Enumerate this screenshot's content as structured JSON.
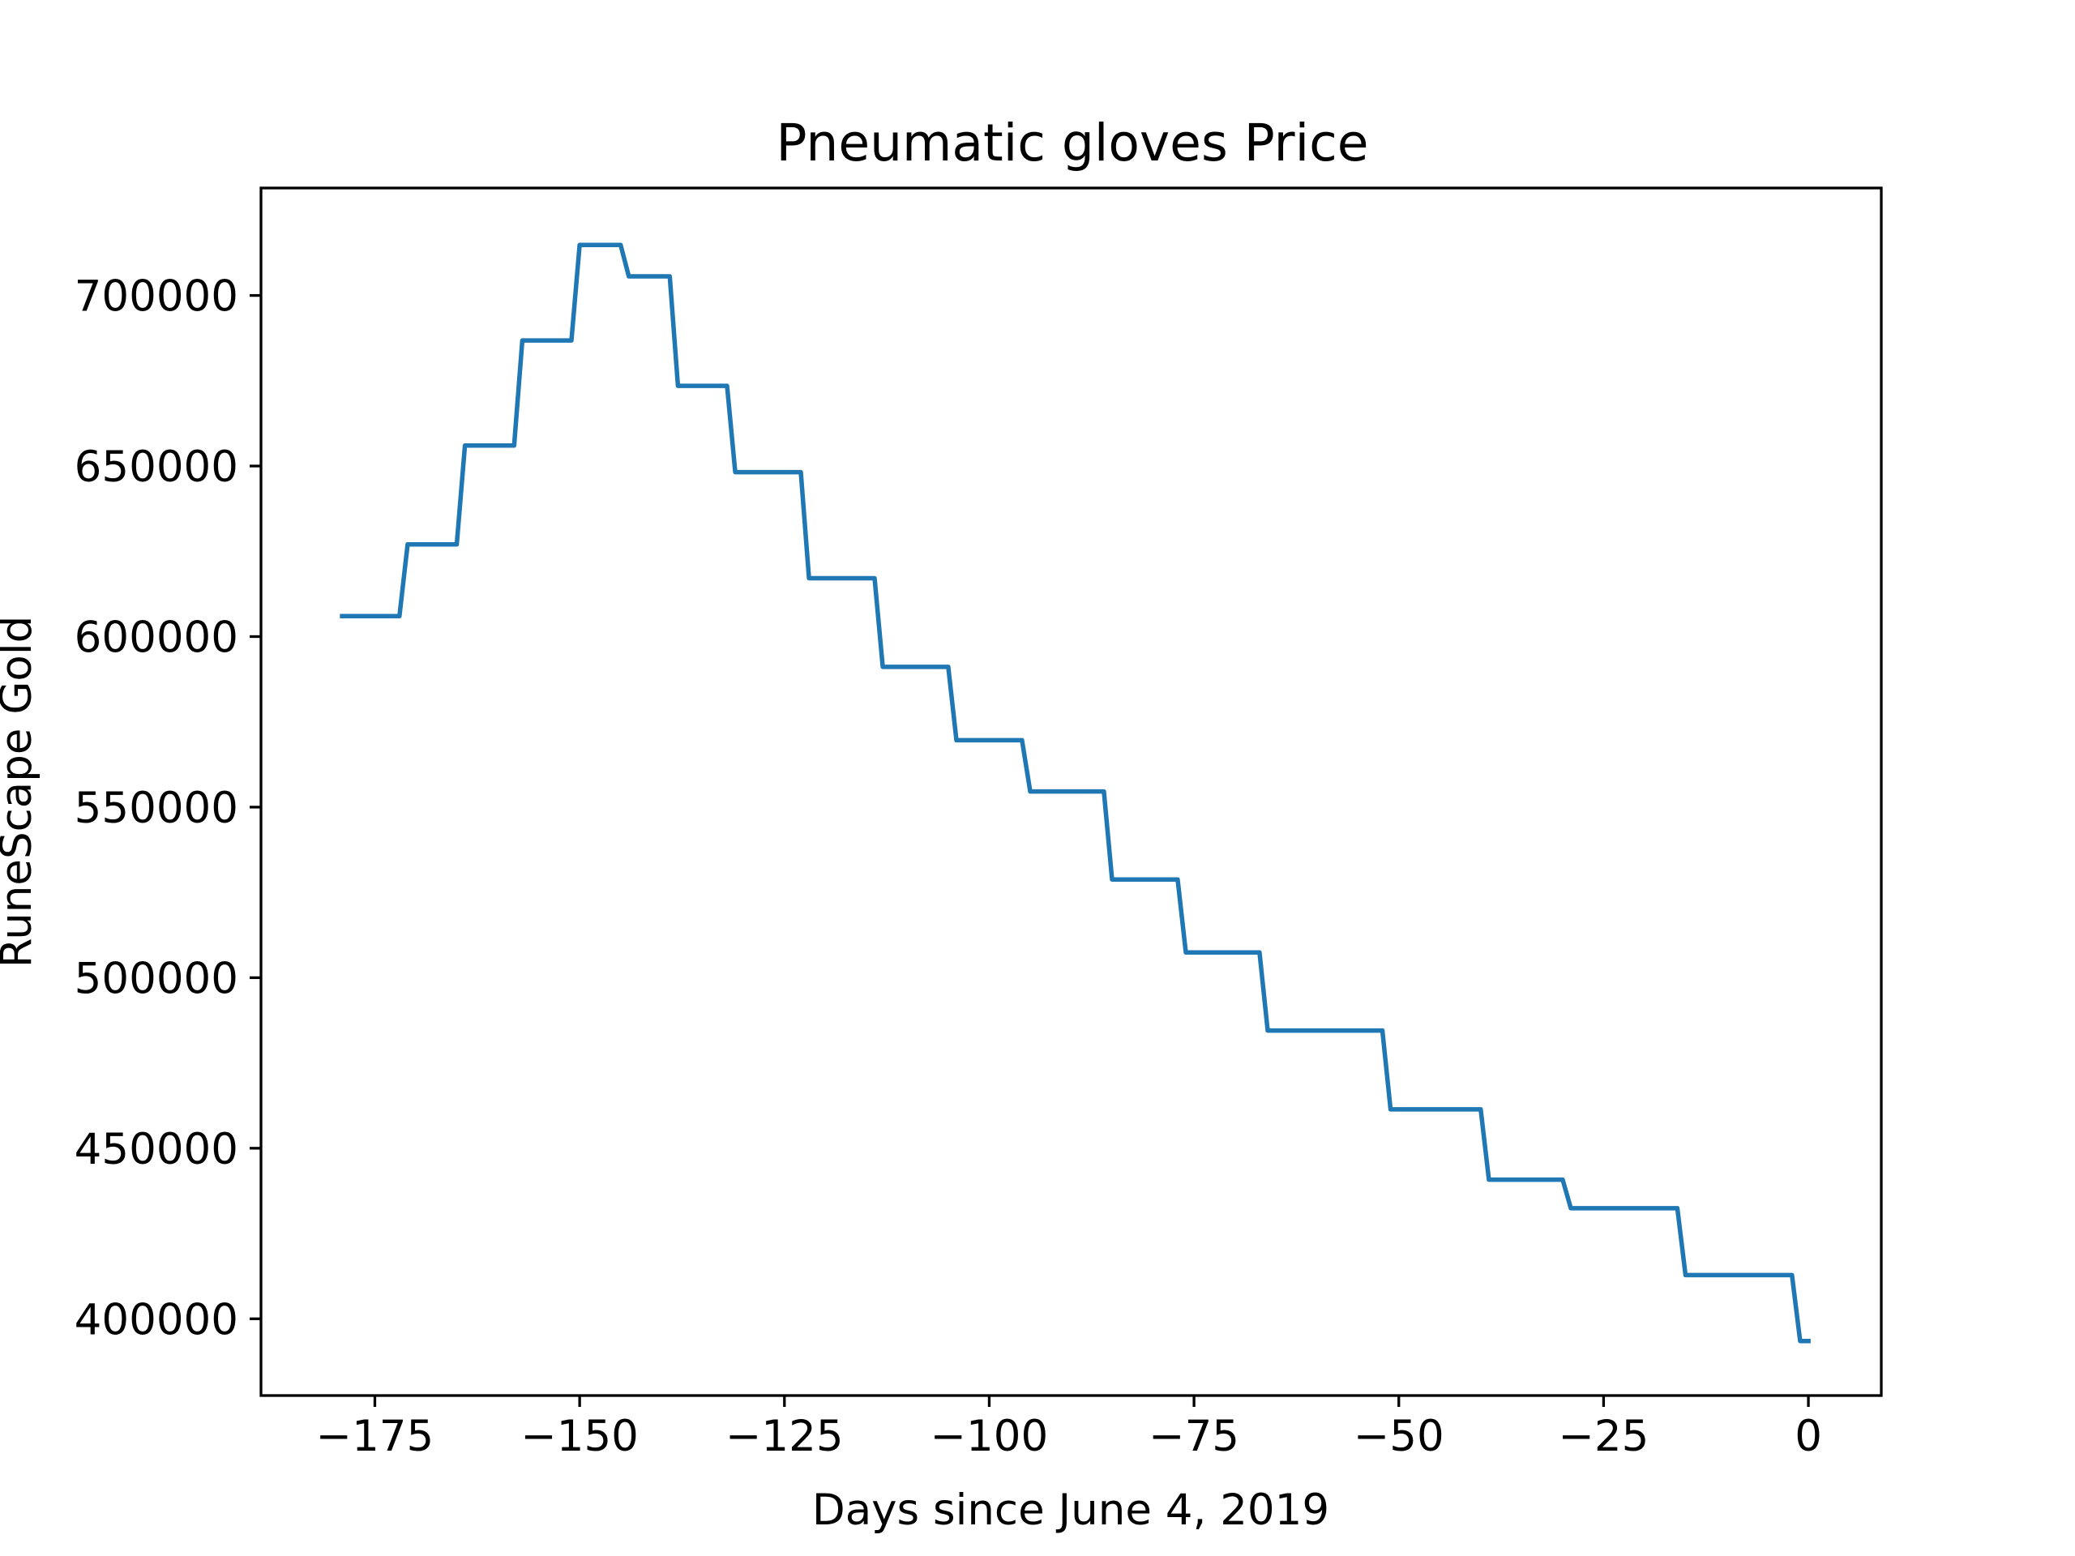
{
  "chart_data": {
    "type": "line",
    "title": "Pneumatic gloves Price",
    "xlabel": "Days since June 4, 2019",
    "ylabel": "RuneScape Gold",
    "xlim": [
      -188.9,
      8.9
    ],
    "ylim": [
      377500,
      731500
    ],
    "grid": false,
    "legend": "none",
    "colors": {
      "line": "#1f77b4"
    },
    "x_ticks": [
      {
        "value": -175,
        "label": "−175"
      },
      {
        "value": -150,
        "label": "−150"
      },
      {
        "value": -125,
        "label": "−125"
      },
      {
        "value": -100,
        "label": "−100"
      },
      {
        "value": -75,
        "label": "−75"
      },
      {
        "value": -50,
        "label": "−50"
      },
      {
        "value": -25,
        "label": "−25"
      },
      {
        "value": 0,
        "label": "0"
      }
    ],
    "y_ticks": [
      {
        "value": 400000,
        "label": "400000"
      },
      {
        "value": 450000,
        "label": "450000"
      },
      {
        "value": 500000,
        "label": "500000"
      },
      {
        "value": 550000,
        "label": "550000"
      },
      {
        "value": 600000,
        "label": "600000"
      },
      {
        "value": 650000,
        "label": "650000"
      },
      {
        "value": 700000,
        "label": "700000"
      }
    ],
    "series": [
      {
        "x": [
          -179,
          -172,
          -171,
          -165,
          -164,
          -158,
          -157,
          -151,
          -150,
          -145,
          -144,
          -139,
          -138,
          -132,
          -131,
          -123,
          -122,
          -114,
          -113,
          -105,
          -104,
          -96,
          -95,
          -86,
          -85,
          -77,
          -76,
          -67,
          -66,
          -52,
          -51,
          -40,
          -39,
          -30,
          -29,
          -16,
          -15,
          -2,
          -1,
          0
        ],
        "y": [
          606000,
          606000,
          627000,
          627000,
          656000,
          656000,
          686800,
          686800,
          714800,
          714800,
          705600,
          705600,
          673500,
          673500,
          648200,
          648200,
          617100,
          617100,
          591100,
          591100,
          569600,
          569600,
          554600,
          554600,
          528800,
          528800,
          507400,
          507400,
          484500,
          484500,
          461400,
          461400,
          440800,
          440800,
          432400,
          432400,
          412800,
          412800,
          393500,
          393500
        ]
      }
    ]
  }
}
